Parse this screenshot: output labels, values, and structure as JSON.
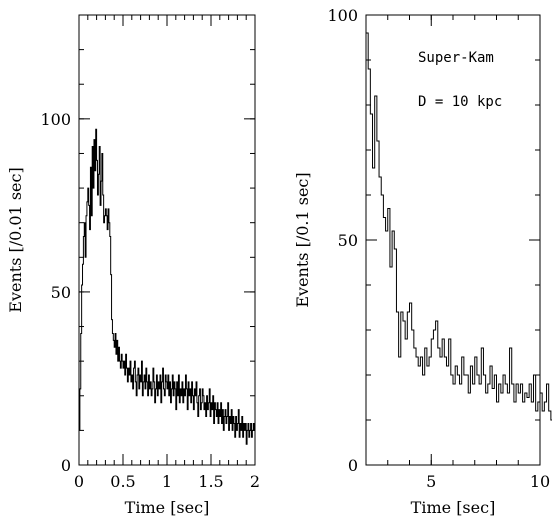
{
  "chart_data": [
    {
      "type": "line",
      "step": true,
      "xlabel": "Time [sec]",
      "ylabel": "Events [/0.01 sec]",
      "xlim": [
        0,
        2
      ],
      "ylim": [
        0,
        130
      ],
      "xticks": [
        {
          "value": 0,
          "label": "0"
        },
        {
          "value": 0.5,
          "label": "0.5"
        },
        {
          "value": 1,
          "label": "1"
        },
        {
          "value": 1.5,
          "label": "1.5"
        },
        {
          "value": 2,
          "label": "2"
        }
      ],
      "yticks": [
        {
          "value": 0,
          "label": "0"
        },
        {
          "value": 50,
          "label": "50"
        },
        {
          "value": 100,
          "label": "100"
        }
      ],
      "x_minor_step": 0.1,
      "y_minor_step": 10,
      "bin_width": 0.01,
      "series": [
        {
          "values": [
            10,
            22,
            38,
            52,
            58,
            66,
            70,
            60,
            72,
            76,
            80,
            75,
            68,
            86,
            72,
            92,
            80,
            94,
            85,
            97,
            88,
            78,
            84,
            92,
            75,
            82,
            90,
            78,
            70,
            72,
            74,
            72,
            68,
            74,
            70,
            66,
            55,
            42,
            38,
            36,
            34,
            38,
            32,
            36,
            30,
            34,
            30,
            28,
            32,
            30,
            28,
            30,
            26,
            32,
            28,
            24,
            28,
            26,
            30,
            24,
            26,
            22,
            28,
            30,
            24,
            20,
            26,
            28,
            22,
            26,
            24,
            30,
            20,
            24,
            26,
            22,
            28,
            24,
            20,
            26,
            22,
            24,
            20,
            22,
            28,
            24,
            18,
            22,
            26,
            20,
            24,
            22,
            26,
            18,
            24,
            28,
            22,
            20,
            26,
            24,
            22,
            26,
            20,
            24,
            18,
            22,
            26,
            20,
            24,
            22,
            16,
            24,
            20,
            26,
            18,
            22,
            20,
            24,
            18,
            22,
            20,
            26,
            22,
            16,
            24,
            20,
            22,
            18,
            24,
            20,
            16,
            22,
            20,
            24,
            18,
            14,
            20,
            22,
            16,
            18,
            22,
            20,
            16,
            18,
            14,
            20,
            16,
            18,
            22,
            14,
            18,
            16,
            20,
            12,
            18,
            16,
            14,
            18,
            12,
            16,
            14,
            18,
            12,
            16,
            10,
            14,
            16,
            12,
            14,
            18,
            10,
            14,
            12,
            16,
            10,
            14,
            12,
            8,
            14,
            10,
            12,
            16,
            8,
            12,
            10,
            14,
            8,
            12,
            10,
            12,
            6,
            10,
            12,
            8,
            10,
            12,
            8,
            10,
            12,
            10
          ]
        }
      ]
    },
    {
      "type": "line",
      "step": true,
      "xlabel": "Time [sec]",
      "ylabel": "Events [/0.1 sec]",
      "xlim": [
        2,
        10
      ],
      "ylim": [
        0,
        100
      ],
      "xticks": [
        {
          "value": 5,
          "label": "5"
        },
        {
          "value": 10,
          "label": "10"
        }
      ],
      "yticks": [
        {
          "value": 0,
          "label": "0"
        },
        {
          "value": 50,
          "label": "50"
        },
        {
          "value": 100,
          "label": "100"
        }
      ],
      "x_minor_step": 1,
      "y_minor_step": 10,
      "annotations": [
        "Super-Kam",
        "D = 10 kpc"
      ],
      "bin_width": 0.1,
      "series": [
        {
          "values": [
            96,
            88,
            78,
            66,
            82,
            72,
            64,
            60,
            55,
            52,
            57,
            44,
            52,
            48,
            34,
            24,
            34,
            32,
            28,
            34,
            36,
            30,
            26,
            24,
            22,
            24,
            20,
            26,
            22,
            24,
            28,
            30,
            32,
            26,
            24,
            28,
            24,
            22,
            28,
            20,
            18,
            22,
            20,
            18,
            24,
            20,
            20,
            16,
            22,
            18,
            24,
            20,
            18,
            26,
            20,
            16,
            18,
            22,
            17,
            20,
            14,
            18,
            16,
            20,
            18,
            16,
            26,
            18,
            14,
            18,
            16,
            18,
            14,
            16,
            15,
            18,
            14,
            20,
            12,
            14,
            16,
            12,
            14,
            18,
            12,
            10,
            14,
            12,
            8,
            12,
            10,
            16,
            14,
            12,
            14,
            18
          ]
        }
      ]
    }
  ]
}
